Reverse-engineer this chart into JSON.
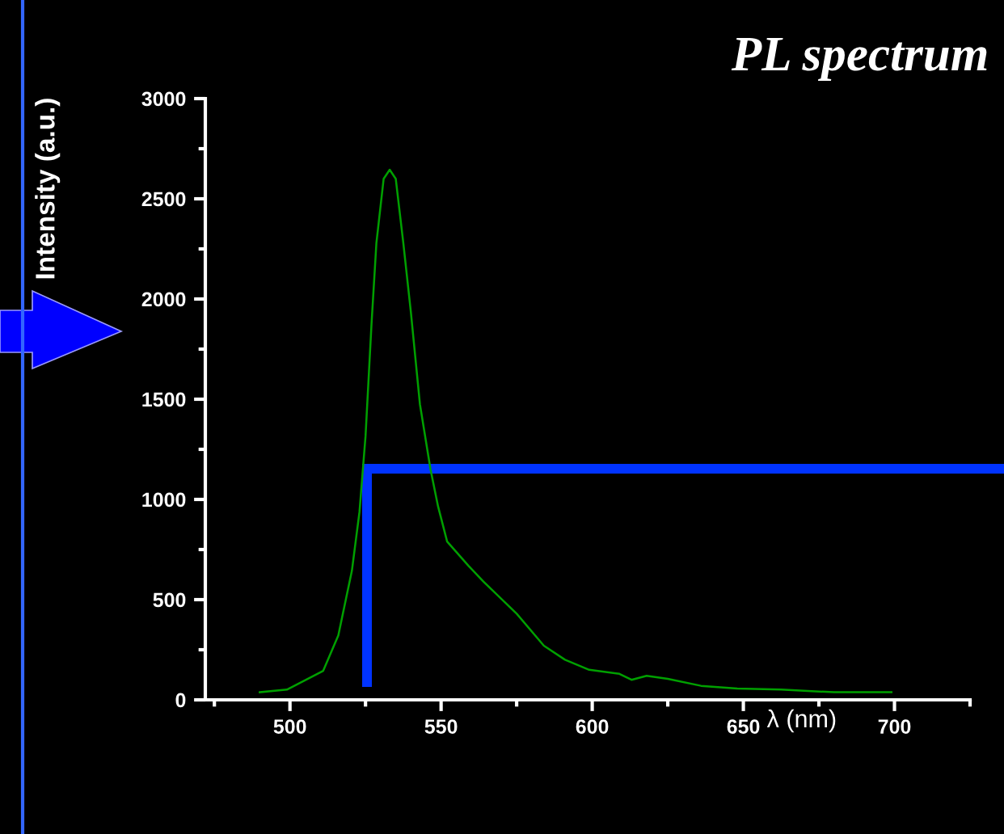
{
  "chart_data": {
    "type": "line",
    "title": "PL spectrum",
    "xlabel": "λ (nm)",
    "ylabel": "Intensity (a.u.)",
    "x": [
      490,
      499,
      511,
      516,
      520.5,
      523,
      525,
      527,
      528.6,
      531,
      533,
      535,
      537.5,
      540,
      543,
      546.5,
      549,
      552,
      559,
      564,
      575,
      584,
      591,
      599,
      609,
      613,
      618,
      625,
      636,
      648,
      662.5,
      680,
      699
    ],
    "series": [
      {
        "color": "#00a000",
        "values": [
          38,
          51,
          145,
          322,
          645,
          938,
          1315,
          1880,
          2280,
          2600,
          2645,
          2600,
          2280,
          1935,
          1475,
          1150,
          965,
          790,
          670,
          590,
          430,
          270,
          200,
          150,
          130,
          100,
          120,
          105,
          70,
          56,
          51,
          38,
          38
        ]
      }
    ],
    "xlim": [
      472,
      725
    ],
    "ylim": [
      0,
      3000
    ],
    "xticks": [
      500,
      550,
      600,
      650,
      700
    ],
    "yticks": [
      0,
      500,
      1000,
      1500,
      2000,
      2500,
      3000
    ],
    "grid": false,
    "legend": false,
    "marker": "none",
    "line_style": "solid"
  }
}
